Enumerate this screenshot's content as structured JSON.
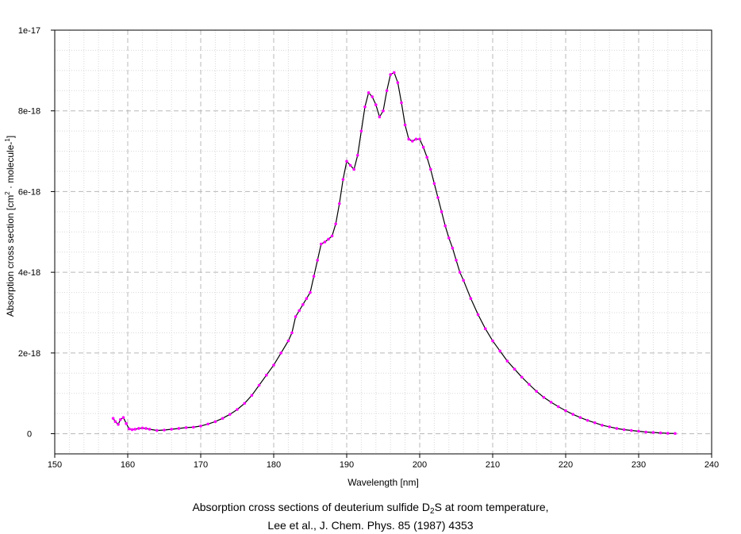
{
  "chart_data": {
    "type": "line",
    "xlabel": "Wavelength [nm]",
    "ylabel": {
      "base": "Absorption cross section [cm",
      "sup1": "2",
      "mid": " · molecule-",
      "sup2": "1",
      "end": "]"
    },
    "xlim": [
      150,
      240
    ],
    "ylim": [
      -5e-19,
      1e-17
    ],
    "x_ticks": [
      150,
      160,
      170,
      180,
      190,
      200,
      210,
      220,
      230,
      240
    ],
    "y_ticks": [
      0,
      2e-18,
      4e-18,
      6e-18,
      8e-18,
      1e-17
    ],
    "y_tick_labels": [
      "0",
      "2e-18",
      "4e-18",
      "6e-18",
      "8e-18",
      "1e-17"
    ],
    "grid": true,
    "line_color": "#000000",
    "marker_color": "#ff00ff",
    "series": [
      {
        "x": [
          158.0,
          158.3,
          158.7,
          159.0,
          159.4,
          159.8,
          160.2,
          160.6,
          161.0,
          161.5,
          162.0,
          162.5,
          163.0,
          164.0,
          165.0,
          166.0,
          167.0,
          168.0,
          169.0,
          170.0,
          171.0,
          172.0,
          173.0,
          174.0,
          175.0,
          176.0,
          177.0,
          178.0,
          179.0,
          180.0,
          181.0,
          182.0,
          182.5,
          183.0,
          183.5,
          184.0,
          184.5,
          185.0,
          185.5,
          186.0,
          186.5,
          187.0,
          187.5,
          188.0,
          188.5,
          189.0,
          189.5,
          190.0,
          190.5,
          191.0,
          191.5,
          192.0,
          192.5,
          193.0,
          193.5,
          194.0,
          194.5,
          195.0,
          195.5,
          196.0,
          196.5,
          197.0,
          197.5,
          198.0,
          198.5,
          199.0,
          199.5,
          200.0,
          200.5,
          201.0,
          201.5,
          202.0,
          202.5,
          203.0,
          203.5,
          204.0,
          204.5,
          205.0,
          205.5,
          206.0,
          207.0,
          208.0,
          209.0,
          210.0,
          211.0,
          212.0,
          213.0,
          214.0,
          215.0,
          216.0,
          217.0,
          218.0,
          219.0,
          220.0,
          221.0,
          222.0,
          223.0,
          224.0,
          225.0,
          226.0,
          227.0,
          228.0,
          229.0,
          230.0,
          231.0,
          232.0,
          233.0,
          234.0,
          235.0
        ],
        "y": [
          3.8e-19,
          3e-19,
          2.3e-19,
          3.5e-19,
          4e-19,
          2.5e-19,
          1.2e-19,
          1e-19,
          1.1e-19,
          1.3e-19,
          1.4e-19,
          1.3e-19,
          1.1e-19,
          8e-20,
          9e-20,
          1.1e-19,
          1.3e-19,
          1.5e-19,
          1.6e-19,
          1.9e-19,
          2.4e-19,
          3e-19,
          3.8e-19,
          4.8e-19,
          6e-19,
          7.5e-19,
          9.5e-19,
          1.2e-18,
          1.45e-18,
          1.7e-18,
          2e-18,
          2.3e-18,
          2.5e-18,
          2.9e-18,
          3.05e-18,
          3.2e-18,
          3.35e-18,
          3.5e-18,
          3.9e-18,
          4.3e-18,
          4.7e-18,
          4.75e-18,
          4.82e-18,
          4.9e-18,
          5.2e-18,
          5.7e-18,
          6.3e-18,
          6.75e-18,
          6.65e-18,
          6.55e-18,
          6.9e-18,
          7.5e-18,
          8.1e-18,
          8.45e-18,
          8.35e-18,
          8.15e-18,
          7.85e-18,
          8e-18,
          8.5e-18,
          8.9e-18,
          8.95e-18,
          8.7e-18,
          8.2e-18,
          7.65e-18,
          7.3e-18,
          7.25e-18,
          7.3e-18,
          7.3e-18,
          7.1e-18,
          6.85e-18,
          6.55e-18,
          6.2e-18,
          5.85e-18,
          5.5e-18,
          5.15e-18,
          4.85e-18,
          4.6e-18,
          4.3e-18,
          4e-18,
          3.8e-18,
          3.35e-18,
          2.95e-18,
          2.6e-18,
          2.3e-18,
          2.05e-18,
          1.8e-18,
          1.6e-18,
          1.4e-18,
          1.22e-18,
          1.05e-18,
          9e-19,
          7.8e-19,
          6.7e-19,
          5.7e-19,
          4.8e-19,
          4e-19,
          3.3e-19,
          2.7e-19,
          2.1e-19,
          1.7e-19,
          1.3e-19,
          1e-19,
          8e-20,
          6e-20,
          4e-20,
          3e-20,
          2e-20,
          1e-20,
          5e-21
        ]
      }
    ]
  },
  "caption": {
    "line1_prefix": "Absorption cross sections of deuterium sulfide D",
    "line1_sub": "2",
    "line1_suffix": "S at room temperature,",
    "line2": "Lee et al., J. Chem. Phys. 85 (1987) 4353"
  }
}
